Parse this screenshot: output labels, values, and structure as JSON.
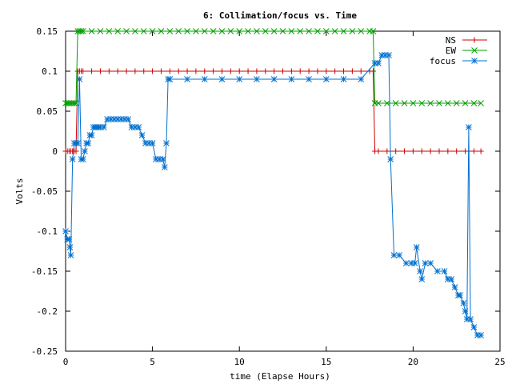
{
  "chart_data": {
    "type": "line",
    "title": "6: Collimation/focus vs. Time",
    "xlabel": "time (Elapse Hours)",
    "ylabel": "Volts",
    "xlim": [
      0,
      25
    ],
    "ylim": [
      -0.25,
      0.15
    ],
    "xticks": [
      0,
      5,
      10,
      15,
      20,
      25
    ],
    "xtick_labels": [
      "0",
      "5",
      "10",
      "15",
      "20",
      "25"
    ],
    "yticks": [
      -0.25,
      -0.2,
      -0.15,
      -0.1,
      -0.05,
      0,
      0.05,
      0.1,
      0.15
    ],
    "ytick_labels": [
      "-0.25",
      "-0.2",
      "-0.15",
      "-0.1",
      "-0.05",
      "0",
      "0.05",
      "0.1",
      "0.15"
    ],
    "grid": false,
    "legend_position": "top-right",
    "series": [
      {
        "name": "NS",
        "color": "#cc0000",
        "marker": "plus",
        "x": [
          0,
          0.1,
          0.2,
          0.3,
          0.4,
          0.5,
          0.6,
          0.7,
          0.8,
          0.9,
          1.0,
          1.5,
          2.0,
          2.5,
          3.0,
          3.5,
          4.0,
          4.5,
          5.0,
          5.5,
          6.0,
          6.5,
          7.0,
          7.5,
          8.0,
          8.5,
          9.0,
          9.5,
          10.0,
          10.5,
          11.0,
          11.5,
          12.0,
          12.5,
          13.0,
          13.5,
          14.0,
          14.5,
          15.0,
          15.5,
          16.0,
          16.5,
          17.0,
          17.5,
          17.7,
          17.8,
          18.0,
          18.5,
          19.0,
          19.5,
          20.0,
          20.5,
          21.0,
          21.5,
          22.0,
          22.5,
          23.0,
          23.5,
          23.9
        ],
        "y": [
          0,
          0,
          0,
          0,
          0,
          0,
          0,
          0.1,
          0.1,
          0.1,
          0.1,
          0.1,
          0.1,
          0.1,
          0.1,
          0.1,
          0.1,
          0.1,
          0.1,
          0.1,
          0.1,
          0.1,
          0.1,
          0.1,
          0.1,
          0.1,
          0.1,
          0.1,
          0.1,
          0.1,
          0.1,
          0.1,
          0.1,
          0.1,
          0.1,
          0.1,
          0.1,
          0.1,
          0.1,
          0.1,
          0.1,
          0.1,
          0.1,
          0.1,
          0.1,
          0,
          0,
          0,
          0,
          0,
          0,
          0,
          0,
          0,
          0,
          0,
          0,
          0,
          0
        ]
      },
      {
        "name": "EW",
        "color": "#00a000",
        "marker": "cross",
        "x": [
          0,
          0.1,
          0.2,
          0.3,
          0.4,
          0.5,
          0.6,
          0.7,
          0.8,
          0.9,
          1.0,
          1.5,
          2.0,
          2.5,
          3.0,
          3.5,
          4.0,
          4.5,
          5.0,
          5.5,
          6.0,
          6.5,
          7.0,
          7.5,
          8.0,
          8.5,
          9.0,
          9.5,
          10.0,
          10.5,
          11.0,
          11.5,
          12.0,
          12.5,
          13.0,
          13.5,
          14.0,
          14.5,
          15.0,
          15.5,
          16.0,
          16.5,
          17.0,
          17.5,
          17.7,
          17.8,
          18.0,
          18.5,
          19.0,
          19.5,
          20.0,
          20.5,
          21.0,
          21.5,
          22.0,
          22.5,
          23.0,
          23.5,
          23.9
        ],
        "y": [
          0.06,
          0.06,
          0.06,
          0.06,
          0.06,
          0.06,
          0.06,
          0.15,
          0.15,
          0.15,
          0.15,
          0.15,
          0.15,
          0.15,
          0.15,
          0.15,
          0.15,
          0.15,
          0.15,
          0.15,
          0.15,
          0.15,
          0.15,
          0.15,
          0.15,
          0.15,
          0.15,
          0.15,
          0.15,
          0.15,
          0.15,
          0.15,
          0.15,
          0.15,
          0.15,
          0.15,
          0.15,
          0.15,
          0.15,
          0.15,
          0.15,
          0.15,
          0.15,
          0.15,
          0.15,
          0.06,
          0.06,
          0.06,
          0.06,
          0.06,
          0.06,
          0.06,
          0.06,
          0.06,
          0.06,
          0.06,
          0.06,
          0.06,
          0.06
        ]
      },
      {
        "name": "focus",
        "color": "#0070d0",
        "marker": "star",
        "x": [
          0,
          0.1,
          0.2,
          0.25,
          0.3,
          0.4,
          0.5,
          0.6,
          0.7,
          0.8,
          0.9,
          1.0,
          1.1,
          1.2,
          1.3,
          1.4,
          1.5,
          1.6,
          1.7,
          1.8,
          1.9,
          2.0,
          2.2,
          2.4,
          2.6,
          2.8,
          3.0,
          3.2,
          3.4,
          3.6,
          3.8,
          4.0,
          4.2,
          4.4,
          4.6,
          4.8,
          5.0,
          5.2,
          5.4,
          5.6,
          5.7,
          5.8,
          5.9,
          6.0,
          7.0,
          8.0,
          9.0,
          10.0,
          11.0,
          12.0,
          13.0,
          14.0,
          15.0,
          16.0,
          17.0,
          17.8,
          18.0,
          18.2,
          18.4,
          18.6,
          18.7,
          18.9,
          19.2,
          19.6,
          19.9,
          20.1,
          20.2,
          20.4,
          20.5,
          20.7,
          21.0,
          21.4,
          21.8,
          22.0,
          22.2,
          22.4,
          22.6,
          22.7,
          22.9,
          23.0,
          23.1,
          23.2,
          23.3,
          23.5,
          23.7,
          23.9
        ],
        "y": [
          -0.1,
          -0.11,
          -0.11,
          -0.12,
          -0.13,
          -0.01,
          0.01,
          0.01,
          0.01,
          0.09,
          -0.01,
          -0.01,
          0,
          0.01,
          0.01,
          0.02,
          0.02,
          0.03,
          0.03,
          0.03,
          0.03,
          0.03,
          0.03,
          0.04,
          0.04,
          0.04,
          0.04,
          0.04,
          0.04,
          0.04,
          0.03,
          0.03,
          0.03,
          0.02,
          0.01,
          0.01,
          0.01,
          -0.01,
          -0.01,
          -0.01,
          -0.02,
          0.01,
          0.09,
          0.09,
          0.09,
          0.09,
          0.09,
          0.09,
          0.09,
          0.09,
          0.09,
          0.09,
          0.09,
          0.09,
          0.09,
          0.11,
          0.11,
          0.12,
          0.12,
          0.12,
          -0.01,
          -0.13,
          -0.13,
          -0.14,
          -0.14,
          -0.14,
          -0.12,
          -0.15,
          -0.16,
          -0.14,
          -0.14,
          -0.15,
          -0.15,
          -0.16,
          -0.16,
          -0.17,
          -0.18,
          -0.18,
          -0.19,
          -0.2,
          -0.21,
          0.03,
          -0.21,
          -0.22,
          -0.23,
          -0.23
        ]
      }
    ]
  }
}
